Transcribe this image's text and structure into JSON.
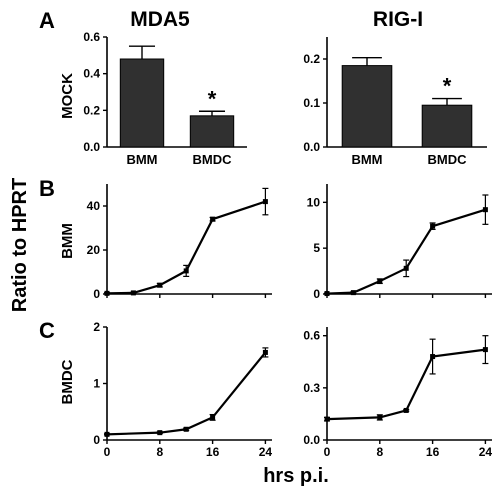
{
  "figure": {
    "shared_ylabel": "Ratio to HPRT",
    "shared_xlabel": "hrs p.i.",
    "col_titles": [
      "MDA5",
      "RIG-I"
    ],
    "row_letters": [
      "A",
      "B",
      "C"
    ],
    "row_labels": [
      "MOCK",
      "BMM",
      "BMDC"
    ]
  },
  "chart_data": [
    {
      "type": "bar",
      "panel": "A-MDA5",
      "categories": [
        "BMM",
        "BMDC"
      ],
      "values": [
        0.48,
        0.17
      ],
      "errors": [
        0.07,
        0.025
      ],
      "significance": [
        "",
        "*"
      ],
      "ylim": [
        0,
        0.6
      ],
      "yticks": [
        0.0,
        0.2,
        0.4,
        0.6
      ],
      "ytick_labels": [
        "0.0",
        "0.2",
        "0.4",
        "0.6"
      ],
      "ylabel": "MOCK",
      "title": "MDA5",
      "bar_color": "#303030"
    },
    {
      "type": "bar",
      "panel": "A-RIG-I",
      "categories": [
        "BMM",
        "BMDC"
      ],
      "values": [
        0.185,
        0.095
      ],
      "errors": [
        0.018,
        0.015
      ],
      "significance": [
        "",
        "*"
      ],
      "ylim": [
        0,
        0.25
      ],
      "yticks": [
        0.0,
        0.1,
        0.2
      ],
      "ytick_labels": [
        "0.0",
        "0.1",
        "0.2"
      ],
      "title": "RIG-I",
      "bar_color": "#303030"
    },
    {
      "type": "line",
      "panel": "B-MDA5",
      "x": [
        0,
        4,
        8,
        12,
        16,
        24
      ],
      "y": [
        0.3,
        0.5,
        4,
        10.5,
        34,
        42
      ],
      "errors": [
        0.3,
        0.3,
        0.8,
        2.5,
        0.8,
        6
      ],
      "xlim": [
        0,
        25
      ],
      "ylim": [
        0,
        50
      ],
      "yticks": [
        0,
        20,
        40
      ],
      "ytick_labels": [
        "0",
        "20",
        "40"
      ],
      "ylabel": "BMM"
    },
    {
      "type": "line",
      "panel": "B-RIG-I",
      "x": [
        0,
        4,
        8,
        12,
        16,
        24
      ],
      "y": [
        0.05,
        0.15,
        1.4,
        2.8,
        7.4,
        9.2
      ],
      "errors": [
        0.05,
        0.1,
        0.25,
        0.9,
        0.35,
        1.6
      ],
      "xlim": [
        0,
        25
      ],
      "ylim": [
        0,
        12
      ],
      "yticks": [
        0,
        5,
        10
      ],
      "ytick_labels": [
        "0",
        "5",
        "10"
      ]
    },
    {
      "type": "line",
      "panel": "C-MDA5",
      "x": [
        0,
        8,
        12,
        16,
        24
      ],
      "y": [
        0.1,
        0.13,
        0.19,
        0.4,
        1.55
      ],
      "errors": [
        0.01,
        0.015,
        0.02,
        0.05,
        0.08
      ],
      "xlim": [
        0,
        25
      ],
      "ylim": [
        0,
        2
      ],
      "yticks": [
        0,
        1,
        2
      ],
      "ytick_labels": [
        "0",
        "1",
        "2"
      ],
      "xticks": [
        0,
        8,
        16,
        24
      ],
      "xtick_labels": [
        "0",
        "8",
        "16",
        "24"
      ],
      "ylabel": "BMDC"
    },
    {
      "type": "line",
      "panel": "C-RIG-I",
      "x": [
        0,
        8,
        12,
        16,
        24
      ],
      "y": [
        0.12,
        0.13,
        0.17,
        0.48,
        0.52
      ],
      "errors": [
        0.01,
        0.015,
        0.005,
        0.1,
        0.08
      ],
      "xlim": [
        0,
        25
      ],
      "ylim": [
        0,
        0.65
      ],
      "yticks": [
        0.0,
        0.3,
        0.6
      ],
      "ytick_labels": [
        "0.0",
        "0.3",
        "0.6"
      ],
      "xticks": [
        0,
        8,
        16,
        24
      ],
      "xtick_labels": [
        "0",
        "8",
        "16",
        "24"
      ]
    }
  ]
}
